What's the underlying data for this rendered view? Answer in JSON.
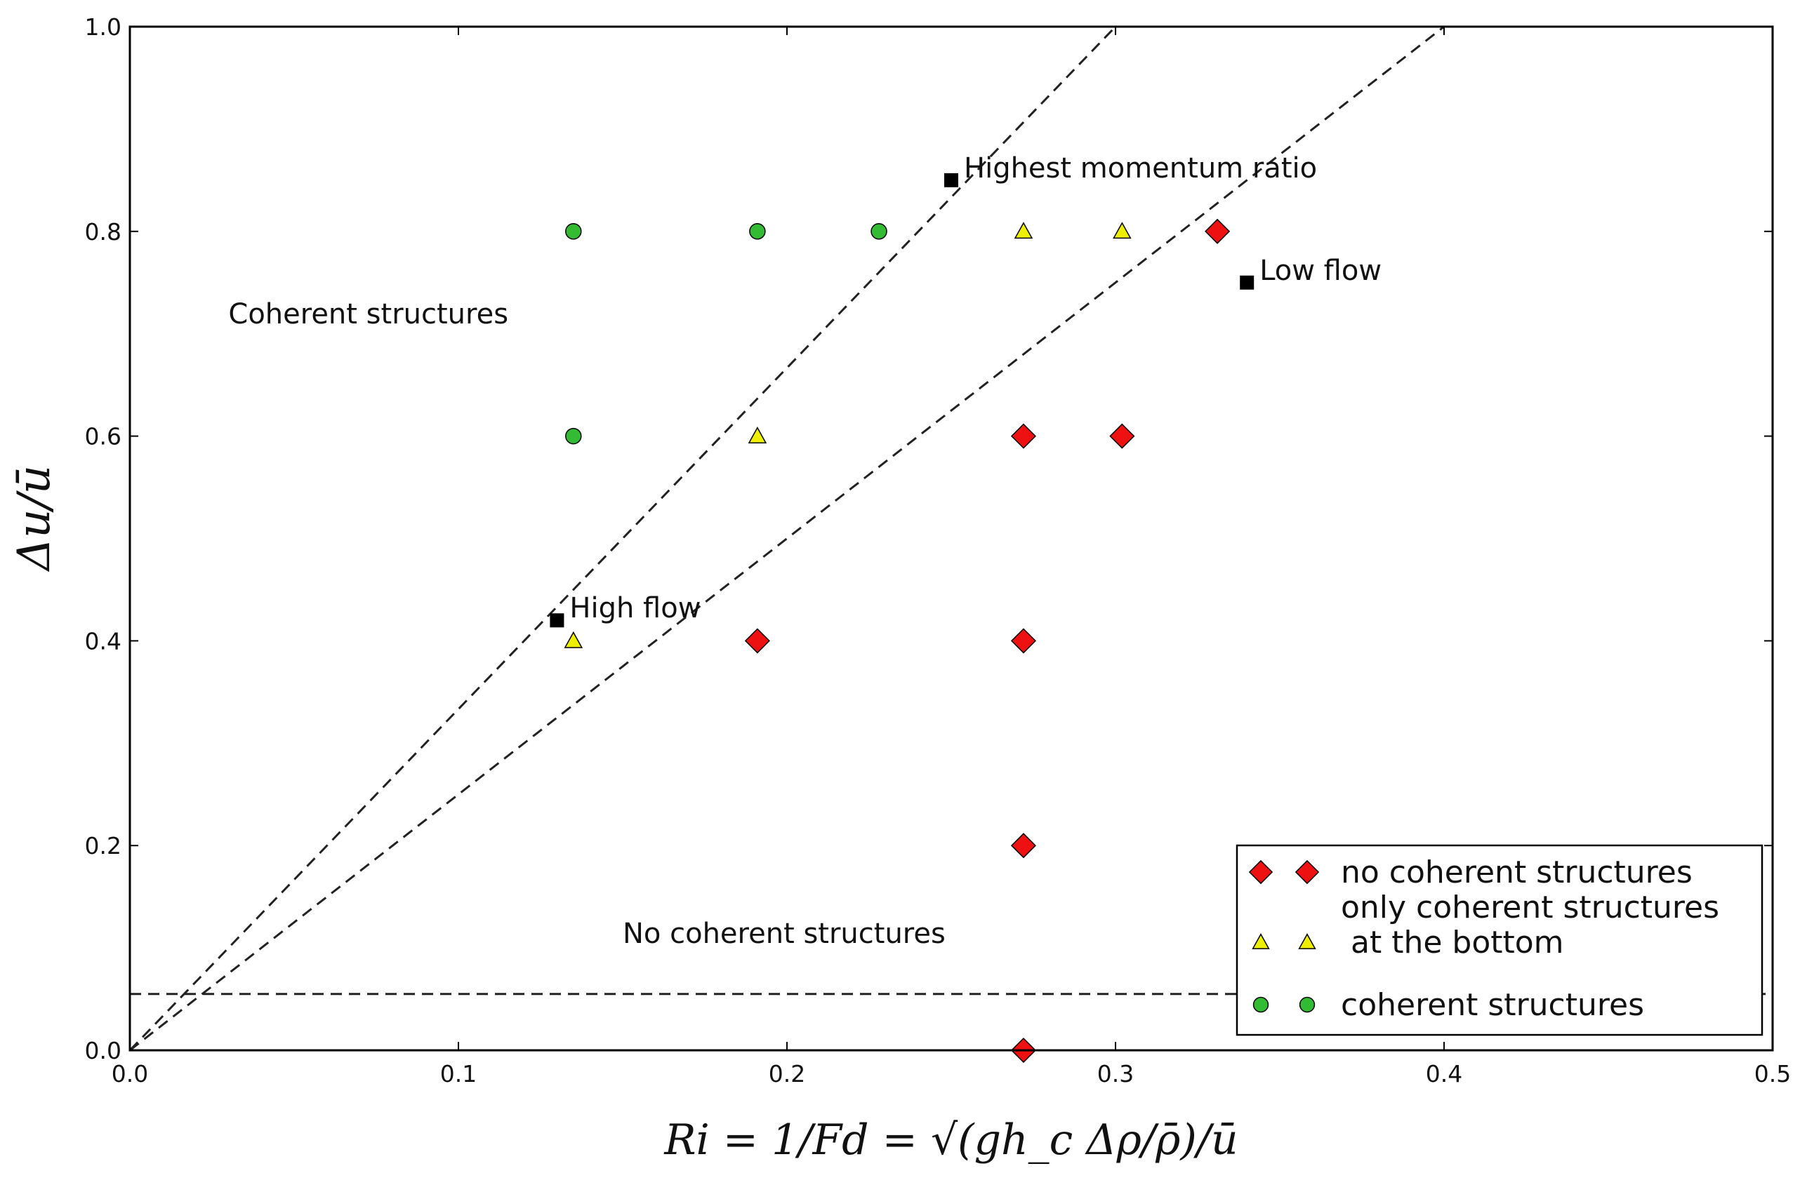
{
  "chart_data": {
    "type": "scatter",
    "xlim": [
      0,
      0.5
    ],
    "ylim": [
      0,
      1.0
    ],
    "xticks": [
      "0.0",
      "0.1",
      "0.2",
      "0.3",
      "0.4",
      "0.5"
    ],
    "yticks": [
      "0.0",
      "0.2",
      "0.4",
      "0.6",
      "0.8",
      "1.0"
    ],
    "xlabel": "Ri = 1/Fd = √(gh_c Δρ/ρ̄)/ū",
    "ylabel": "Δu/ū",
    "series": [
      {
        "name": "no coherent structures",
        "marker": "diamond",
        "color": "#ee1111",
        "points": [
          [
            0.331,
            0.8
          ],
          [
            0.272,
            0.6
          ],
          [
            0.302,
            0.6
          ],
          [
            0.191,
            0.4
          ],
          [
            0.272,
            0.4
          ],
          [
            0.272,
            0.2
          ],
          [
            0.272,
            0.0
          ]
        ]
      },
      {
        "name": "only coherent structures\n at the bottom",
        "marker": "triangle",
        "color": "#eeee00",
        "points": [
          [
            0.272,
            0.8
          ],
          [
            0.302,
            0.8
          ],
          [
            0.191,
            0.6
          ],
          [
            0.135,
            0.4
          ]
        ]
      },
      {
        "name": "coherent structures",
        "marker": "circle",
        "color": "#33bb33",
        "points": [
          [
            0.135,
            0.8
          ],
          [
            0.191,
            0.8
          ],
          [
            0.228,
            0.8
          ],
          [
            0.135,
            0.6
          ]
        ]
      }
    ],
    "named_points": [
      {
        "label": "Highest momentum ratio",
        "x": 0.25,
        "y": 0.85
      },
      {
        "label": "Low flow",
        "x": 0.34,
        "y": 0.75
      },
      {
        "label": "High flow",
        "x": 0.13,
        "y": 0.42
      }
    ],
    "reference_lines": [
      {
        "kind": "ray",
        "from": [
          0,
          0
        ],
        "to": [
          0.3,
          1.0
        ],
        "style": "dashed"
      },
      {
        "kind": "ray",
        "from": [
          0,
          0
        ],
        "to": [
          0.4,
          1.0
        ],
        "style": "dashed"
      },
      {
        "kind": "horizontal",
        "y": 0.055,
        "style": "dashed"
      }
    ],
    "region_labels": [
      {
        "label": "Coherent structures",
        "x": 0.03,
        "y": 0.71
      },
      {
        "label": "No coherent structures",
        "x": 0.15,
        "y": 0.105
      }
    ],
    "legend_position": "lower-right",
    "grid": false
  }
}
